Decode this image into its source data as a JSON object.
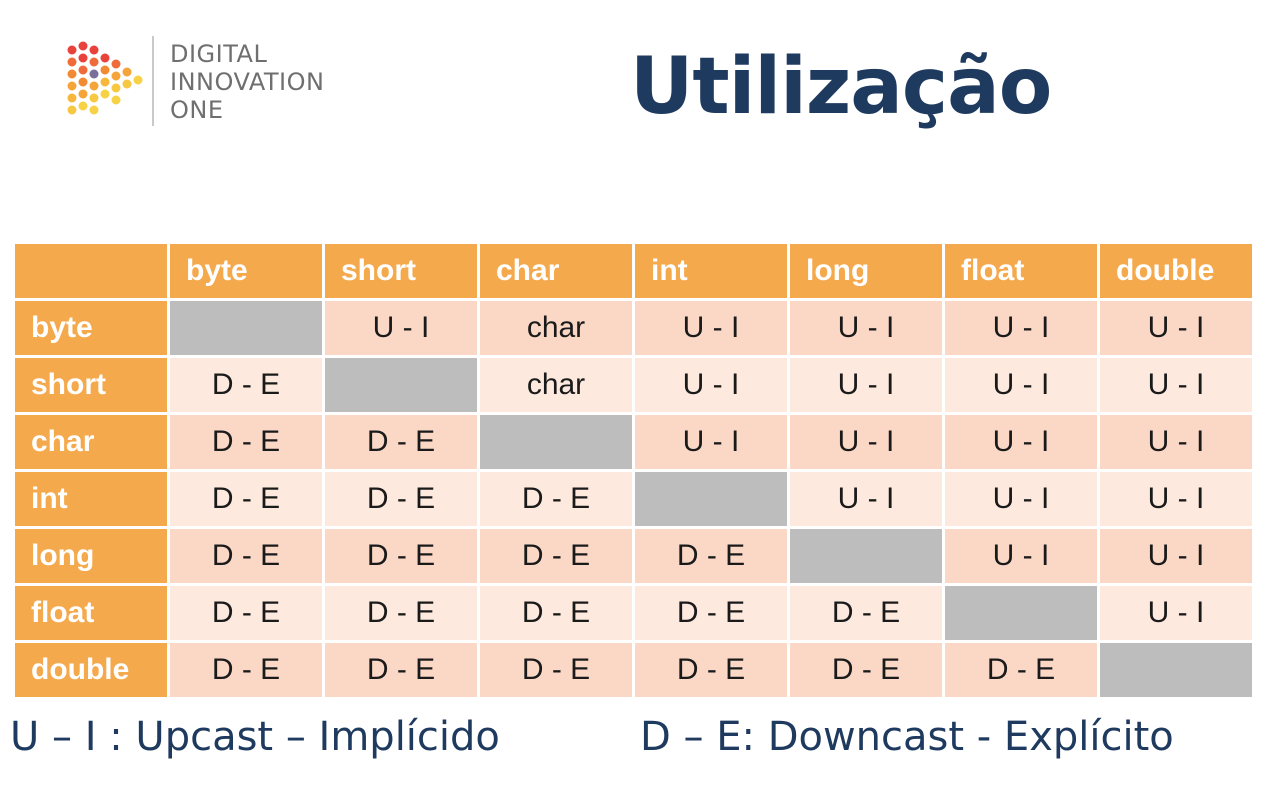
{
  "logo": {
    "icon": "dio-dots-logo-icon",
    "line1": "DIGITAL",
    "line2": "INNOVATION",
    "line3": "ONE"
  },
  "title": "Utilização",
  "table": {
    "columns": [
      "byte",
      "short",
      "char",
      "int",
      "long",
      "float",
      "double"
    ],
    "rows": [
      {
        "label": "byte",
        "cells": [
          "",
          "U - I",
          "char",
          "U - I",
          "U - I",
          "U - I",
          "U - I"
        ]
      },
      {
        "label": "short",
        "cells": [
          "D - E",
          "",
          "char",
          "U - I",
          "U - I",
          "U - I",
          "U - I"
        ]
      },
      {
        "label": "char",
        "cells": [
          "D - E",
          "D - E",
          "",
          "U - I",
          "U - I",
          "U - I",
          "U - I"
        ]
      },
      {
        "label": "int",
        "cells": [
          "D - E",
          "D - E",
          "D - E",
          "",
          "U - I",
          "U - I",
          "U - I"
        ]
      },
      {
        "label": "long",
        "cells": [
          "D - E",
          "D - E",
          "D - E",
          "D - E",
          "",
          "U - I",
          "U - I"
        ]
      },
      {
        "label": "float",
        "cells": [
          "D - E",
          "D - E",
          "D - E",
          "D - E",
          "D - E",
          "",
          "U - I"
        ]
      },
      {
        "label": "double",
        "cells": [
          "D - E",
          "D - E",
          "D - E",
          "D - E",
          "D - E",
          "D - E",
          ""
        ]
      }
    ]
  },
  "legend": {
    "upcast": "U – I : Upcast – Implícido",
    "downcast": "D – E: Downcast - Explícito"
  },
  "colors": {
    "header": "#f5a94d",
    "cell_dark": "#fbd8c6",
    "cell_light": "#fde9de",
    "diagonal": "#bdbdbd",
    "title": "#1f3a5f"
  }
}
